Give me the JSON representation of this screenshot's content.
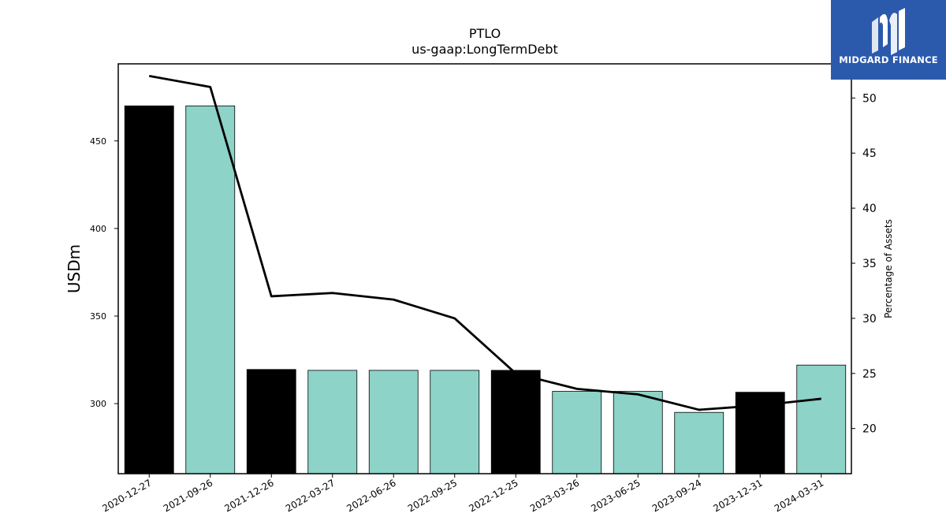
{
  "brand": {
    "name": "MIDGARD FINANCE"
  },
  "chart_data": {
    "type": "bar",
    "title": "PTLO",
    "subtitle": "us-gaap:LongTermDebt",
    "ylabel": "USDm",
    "y2label": "Percentage of Assets",
    "ylim": [
      260,
      494
    ],
    "y2lim": [
      15.9,
      53.1
    ],
    "yticks": [
      300,
      350,
      400,
      450
    ],
    "y2ticks": [
      20,
      25,
      30,
      35,
      40,
      45,
      50
    ],
    "categories": [
      "2020-12-27",
      "2021-09-26",
      "2021-12-26",
      "2022-03-27",
      "2022-06-26",
      "2022-09-25",
      "2022-12-25",
      "2023-03-26",
      "2023-06-25",
      "2023-09-24",
      "2023-12-31",
      "2024-03-31"
    ],
    "series": [
      {
        "type": "bar",
        "axis": "left",
        "values": [
          470,
          470,
          319.5,
          319,
          319,
          319,
          319,
          307,
          307,
          295,
          306.5,
          322
        ]
      },
      {
        "type": "line",
        "axis": "right",
        "values": [
          52.0,
          51.0,
          32.0,
          32.3,
          31.7,
          30.0,
          25.0,
          23.6,
          23.1,
          21.7,
          22.1,
          22.7
        ]
      }
    ],
    "bar_colors": [
      "#000000",
      "#8dd3c7",
      "#000000",
      "#8dd3c7",
      "#8dd3c7",
      "#8dd3c7",
      "#000000",
      "#8dd3c7",
      "#8dd3c7",
      "#8dd3c7",
      "#000000",
      "#8dd3c7"
    ],
    "line_color": "#000000",
    "grid": false,
    "legend": "none"
  }
}
